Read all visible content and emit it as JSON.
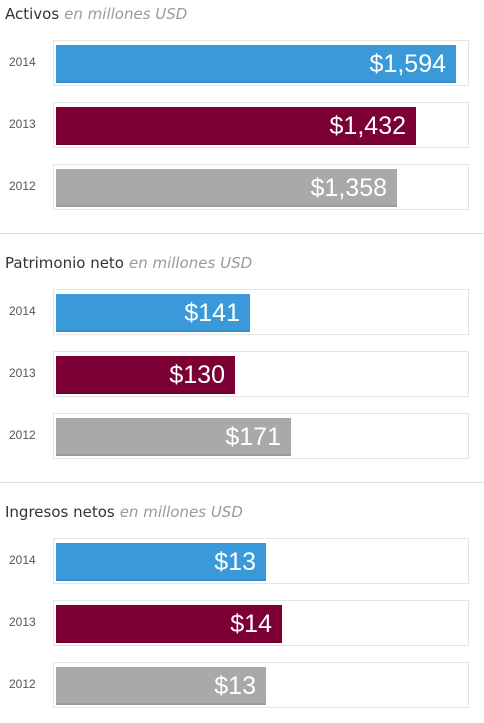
{
  "chart_data": [
    {
      "type": "bar",
      "orientation": "horizontal",
      "title": "Activos",
      "subtitle": "en millones USD",
      "categories": [
        "2014",
        "2013",
        "2012"
      ],
      "values": [
        1594,
        1432,
        1358
      ],
      "labels": [
        "$1,594",
        "$1,432",
        "$1,358"
      ],
      "colors": [
        "#3a9ad9",
        "#7d0035",
        "#a9a9a9"
      ],
      "xlim": [
        0,
        1640
      ]
    },
    {
      "type": "bar",
      "orientation": "horizontal",
      "title": "Patrimonio neto",
      "subtitle": "en millones USD",
      "categories": [
        "2014",
        "2013",
        "2012"
      ],
      "values": [
        141,
        130,
        171
      ],
      "labels": [
        "$141",
        "$130",
        "$171"
      ],
      "colors": [
        "#3a9ad9",
        "#7d0035",
        "#a9a9a9"
      ],
      "xlim": [
        0,
        300
      ]
    },
    {
      "type": "bar",
      "orientation": "horizontal",
      "title": "Ingresos netos",
      "subtitle": "en millones USD",
      "categories": [
        "2014",
        "2013",
        "2012"
      ],
      "values": [
        13,
        14,
        13
      ],
      "labels": [
        "$13",
        "$14",
        "$13"
      ],
      "colors": [
        "#3a9ad9",
        "#7d0035",
        "#a9a9a9"
      ],
      "xlim": [
        0,
        25.5
      ]
    }
  ]
}
